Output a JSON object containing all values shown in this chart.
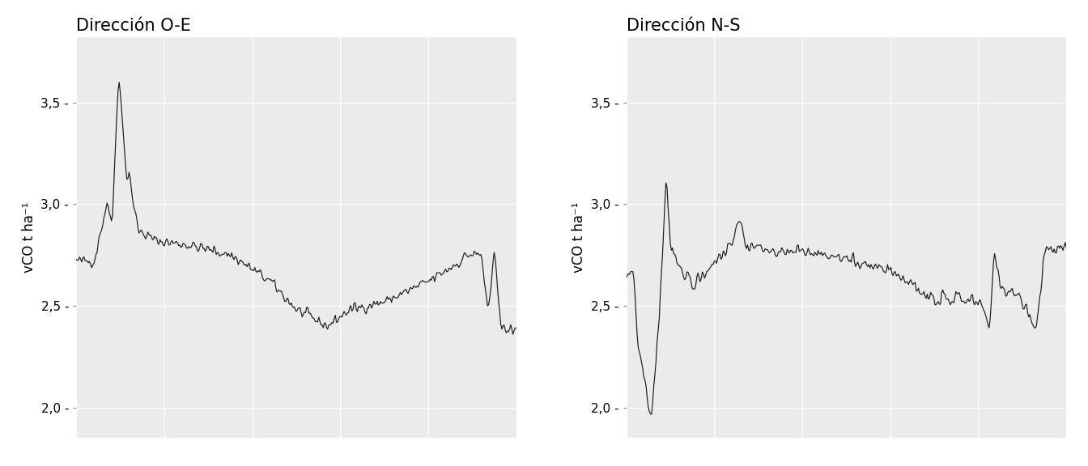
{
  "title_left": "Dirección O-E",
  "title_right": "Dirección N-S",
  "ylabel": "vCO t ha⁻¹",
  "ylim": [
    1.85,
    3.82
  ],
  "yticks": [
    2.0,
    2.5,
    3.0,
    3.5
  ],
  "ytick_labels": [
    "2,0 -",
    "2,5 -",
    "3,0 -",
    "3,5 -"
  ],
  "bg_color": "#EBEBEB",
  "line_color": "#1a1a1a",
  "title_fontsize": 15,
  "label_fontsize": 12,
  "tick_fontsize": 11
}
